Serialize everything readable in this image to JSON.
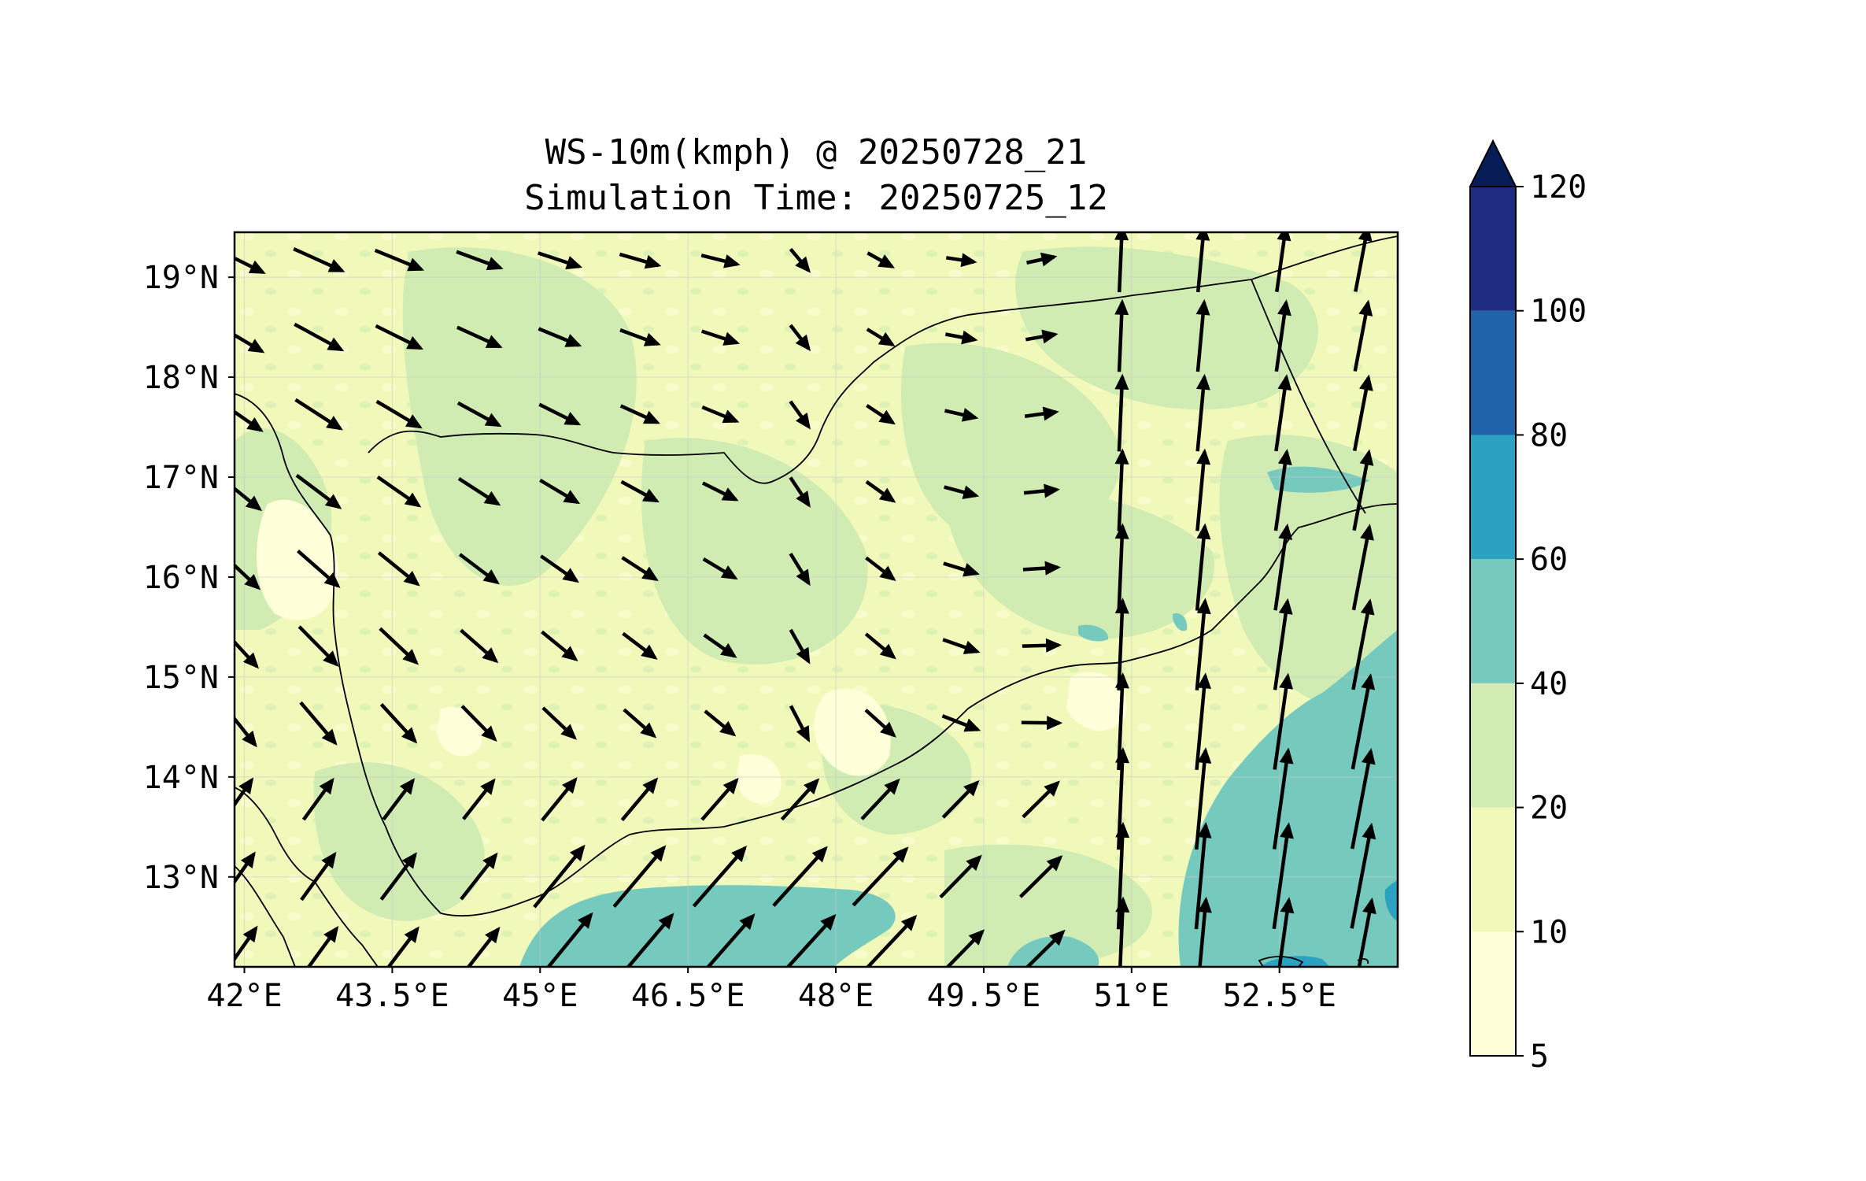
{
  "title_line1": "WS-10m(kmph) @ 20250728_21",
  "title_line2": "Simulation Time: 20250725_12",
  "map": {
    "lon_range": [
      41.9,
      53.7
    ],
    "lat_range": [
      12.1,
      19.45
    ],
    "lon_ticks": [
      {
        "value": 42.0,
        "label": "42°E"
      },
      {
        "value": 43.5,
        "label": "43.5°E"
      },
      {
        "value": 45.0,
        "label": "45°E"
      },
      {
        "value": 46.5,
        "label": "46.5°E"
      },
      {
        "value": 48.0,
        "label": "48°E"
      },
      {
        "value": 49.5,
        "label": "49.5°E"
      },
      {
        "value": 51.0,
        "label": "51°E"
      },
      {
        "value": 52.5,
        "label": "52.5°E"
      }
    ],
    "lat_ticks": [
      {
        "value": 19.0,
        "label": "19°N"
      },
      {
        "value": 18.0,
        "label": "18°N"
      },
      {
        "value": 17.0,
        "label": "17°N"
      },
      {
        "value": 16.0,
        "label": "16°N"
      },
      {
        "value": 15.0,
        "label": "15°N"
      },
      {
        "value": 14.0,
        "label": "14°N"
      },
      {
        "value": 13.0,
        "label": "13°N"
      }
    ],
    "grid": true
  },
  "colorbar": {
    "levels": [
      {
        "value": 5,
        "label": "5"
      },
      {
        "value": 10,
        "label": "10"
      },
      {
        "value": 20,
        "label": "20"
      },
      {
        "value": 40,
        "label": "40"
      },
      {
        "value": 60,
        "label": "60"
      },
      {
        "value": 80,
        "label": "80"
      },
      {
        "value": 100,
        "label": "100"
      },
      {
        "value": 120,
        "label": "120"
      }
    ],
    "colors": [
      "#ffffd9",
      "#f0f9b9",
      "#d0ecb3",
      "#76c9bd",
      "#2ca2c2",
      "#2163aa",
      "#1d2b80"
    ],
    "extend_color": "#081d58",
    "extend": "max"
  },
  "colors": {
    "land": "#f0f9b9",
    "calm": "#ffffd9",
    "moderate": "#d0ecb3",
    "strong": "#76c9bd",
    "very_strong": "#2ca2c2",
    "arrow": "#000000"
  }
}
